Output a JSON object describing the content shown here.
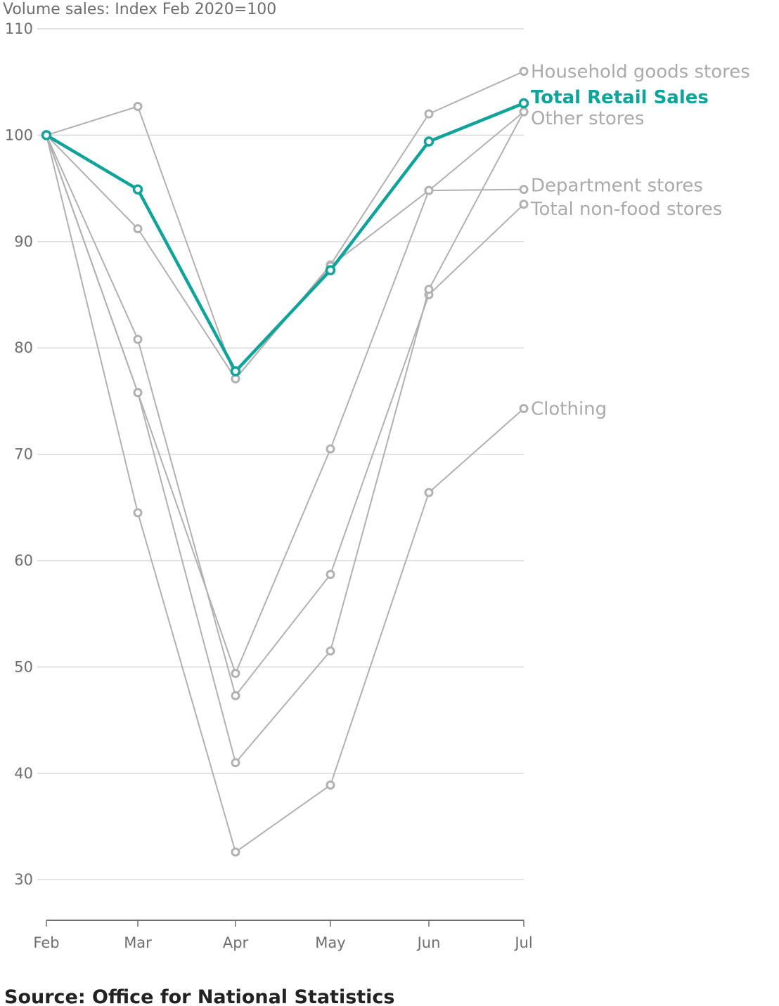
{
  "chart_data": {
    "type": "line",
    "title": "",
    "ylabel": "Volume sales: Index Feb 2020=100",
    "xlabel": "",
    "categories": [
      "Feb",
      "Mar",
      "Apr",
      "May",
      "Jun",
      "Jul"
    ],
    "ylim": [
      26,
      113
    ],
    "yticks": [
      30,
      40,
      50,
      60,
      70,
      80,
      90,
      100,
      110
    ],
    "grid": true,
    "colors": {
      "highlight": "#0fa39a",
      "muted": "#b1b1b1",
      "label_muted": "#aaaaaa"
    },
    "series": [
      {
        "name": "Household goods stores",
        "labelled": true,
        "highlight": false,
        "values": [
          100,
          102.7,
          77.1,
          87.8,
          102.0,
          106.0
        ]
      },
      {
        "name": "Other stores",
        "labelled": true,
        "highlight": false,
        "values": [
          100,
          75.8,
          49.4,
          70.5,
          94.8,
          102.2
        ]
      },
      {
        "name": "Department stores",
        "labelled": true,
        "highlight": false,
        "values": [
          100,
          91.2,
          77.1,
          87.7,
          94.8,
          94.9
        ]
      },
      {
        "name": "Total non-food stores",
        "labelled": true,
        "highlight": false,
        "values": [
          100,
          80.8,
          47.3,
          58.7,
          85.0,
          93.5
        ]
      },
      {
        "name": "Clothing",
        "labelled": true,
        "highlight": false,
        "values": [
          100,
          64.5,
          32.6,
          38.9,
          66.4,
          74.3
        ]
      },
      {
        "name": "unlabelled store type",
        "labelled": false,
        "highlight": false,
        "values": [
          100,
          75.8,
          41.0,
          51.5,
          85.5,
          102.2
        ]
      },
      {
        "name": "Total Retail Sales",
        "labelled": true,
        "highlight": true,
        "values": [
          100,
          94.9,
          77.8,
          87.3,
          99.4,
          103.0
        ]
      }
    ],
    "label_y": {
      "Household goods stores": 106.0,
      "Total Retail Sales": 103.6,
      "Other stores": 101.6,
      "Department stores": 95.3,
      "Total non-food stores": 93.1,
      "Clothing": 74.3
    },
    "source": "Source: Office for National Statistics"
  }
}
